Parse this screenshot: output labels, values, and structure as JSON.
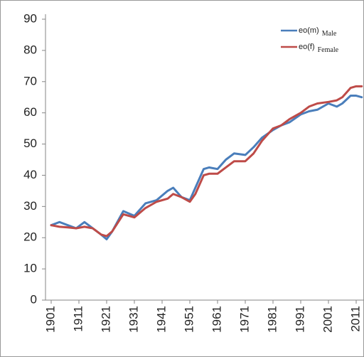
{
  "chart_data": {
    "type": "line",
    "x": [
      1901,
      1904,
      1907,
      1910,
      1913,
      1916,
      1919,
      1921,
      1923,
      1927,
      1931,
      1935,
      1939,
      1943,
      1945,
      1948,
      1951,
      1953,
      1956,
      1958,
      1961,
      1964,
      1967,
      1971,
      1974,
      1977,
      1981,
      1984,
      1987,
      1991,
      1994,
      1997,
      2001,
      2004,
      2006,
      2009,
      2011,
      2013
    ],
    "series": [
      {
        "name": "eo(m)",
        "name_sub": "Male",
        "color": "#4a7ebb",
        "values": [
          24,
          25,
          24,
          23,
          25,
          23,
          21,
          19.5,
          22,
          28.5,
          27,
          31,
          32,
          35,
          36,
          33,
          32,
          36,
          42,
          42.5,
          42,
          45,
          47,
          46.5,
          49,
          52,
          54.5,
          56,
          57,
          59.5,
          60.5,
          61,
          63,
          62,
          63,
          65.5,
          65.5,
          65
        ]
      },
      {
        "name": "eo(f)",
        "name_sub": "Female",
        "color": "#be4b48",
        "values": [
          24,
          23.5,
          23.3,
          23,
          23.5,
          23,
          21,
          20.5,
          22,
          27.5,
          26.5,
          29.5,
          31.5,
          32.5,
          34,
          33,
          31.5,
          34,
          40,
          40.5,
          40.5,
          42.5,
          44.5,
          44.5,
          47,
          51,
          55,
          56,
          58,
          60,
          62,
          63,
          63.5,
          64,
          65,
          68,
          68.5,
          68.5
        ]
      }
    ],
    "xlim": [
      1899,
      2014
    ],
    "xticks": [
      1901,
      1911,
      1921,
      1931,
      1941,
      1951,
      1961,
      1971,
      1981,
      1991,
      2001,
      2011
    ],
    "ylim": [
      0,
      90
    ],
    "yticks": [
      0,
      10,
      20,
      30,
      40,
      50,
      60,
      70,
      80,
      90
    ],
    "legend": "top-right"
  }
}
